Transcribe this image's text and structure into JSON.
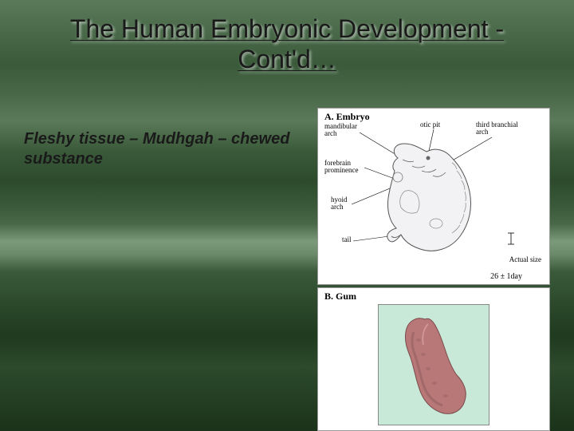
{
  "slide": {
    "title": "The Human Embryonic Development - Cont'd…",
    "body": "Fleshy tissue – Mudhgah – chewed substance"
  },
  "figureA": {
    "heading": "A. Embryo",
    "caption": "26 ± 1day",
    "actualSizeLabel": "Actual size",
    "labels": {
      "mandibular": "mandibular\narch",
      "oticPit": "otic pit",
      "thirdBranchial": "third branchial\narch",
      "forebrain": "forebrain\nprominence",
      "hyoid": "hyoid\narch",
      "tail": "tail"
    },
    "embryo": {
      "outlineFill": "#f2f2f4",
      "outlineStroke": "#555555",
      "innerStroke": "#888888"
    }
  },
  "figureB": {
    "heading": "B. Gum",
    "gum": {
      "fill": "#b87878",
      "shadow": "#8a5a5a",
      "highlight": "#d8a0a0",
      "bg": "#c8e8d8"
    }
  },
  "style": {
    "titleColor": "#1a1a1a",
    "bodyColor": "#1a1a1a"
  }
}
